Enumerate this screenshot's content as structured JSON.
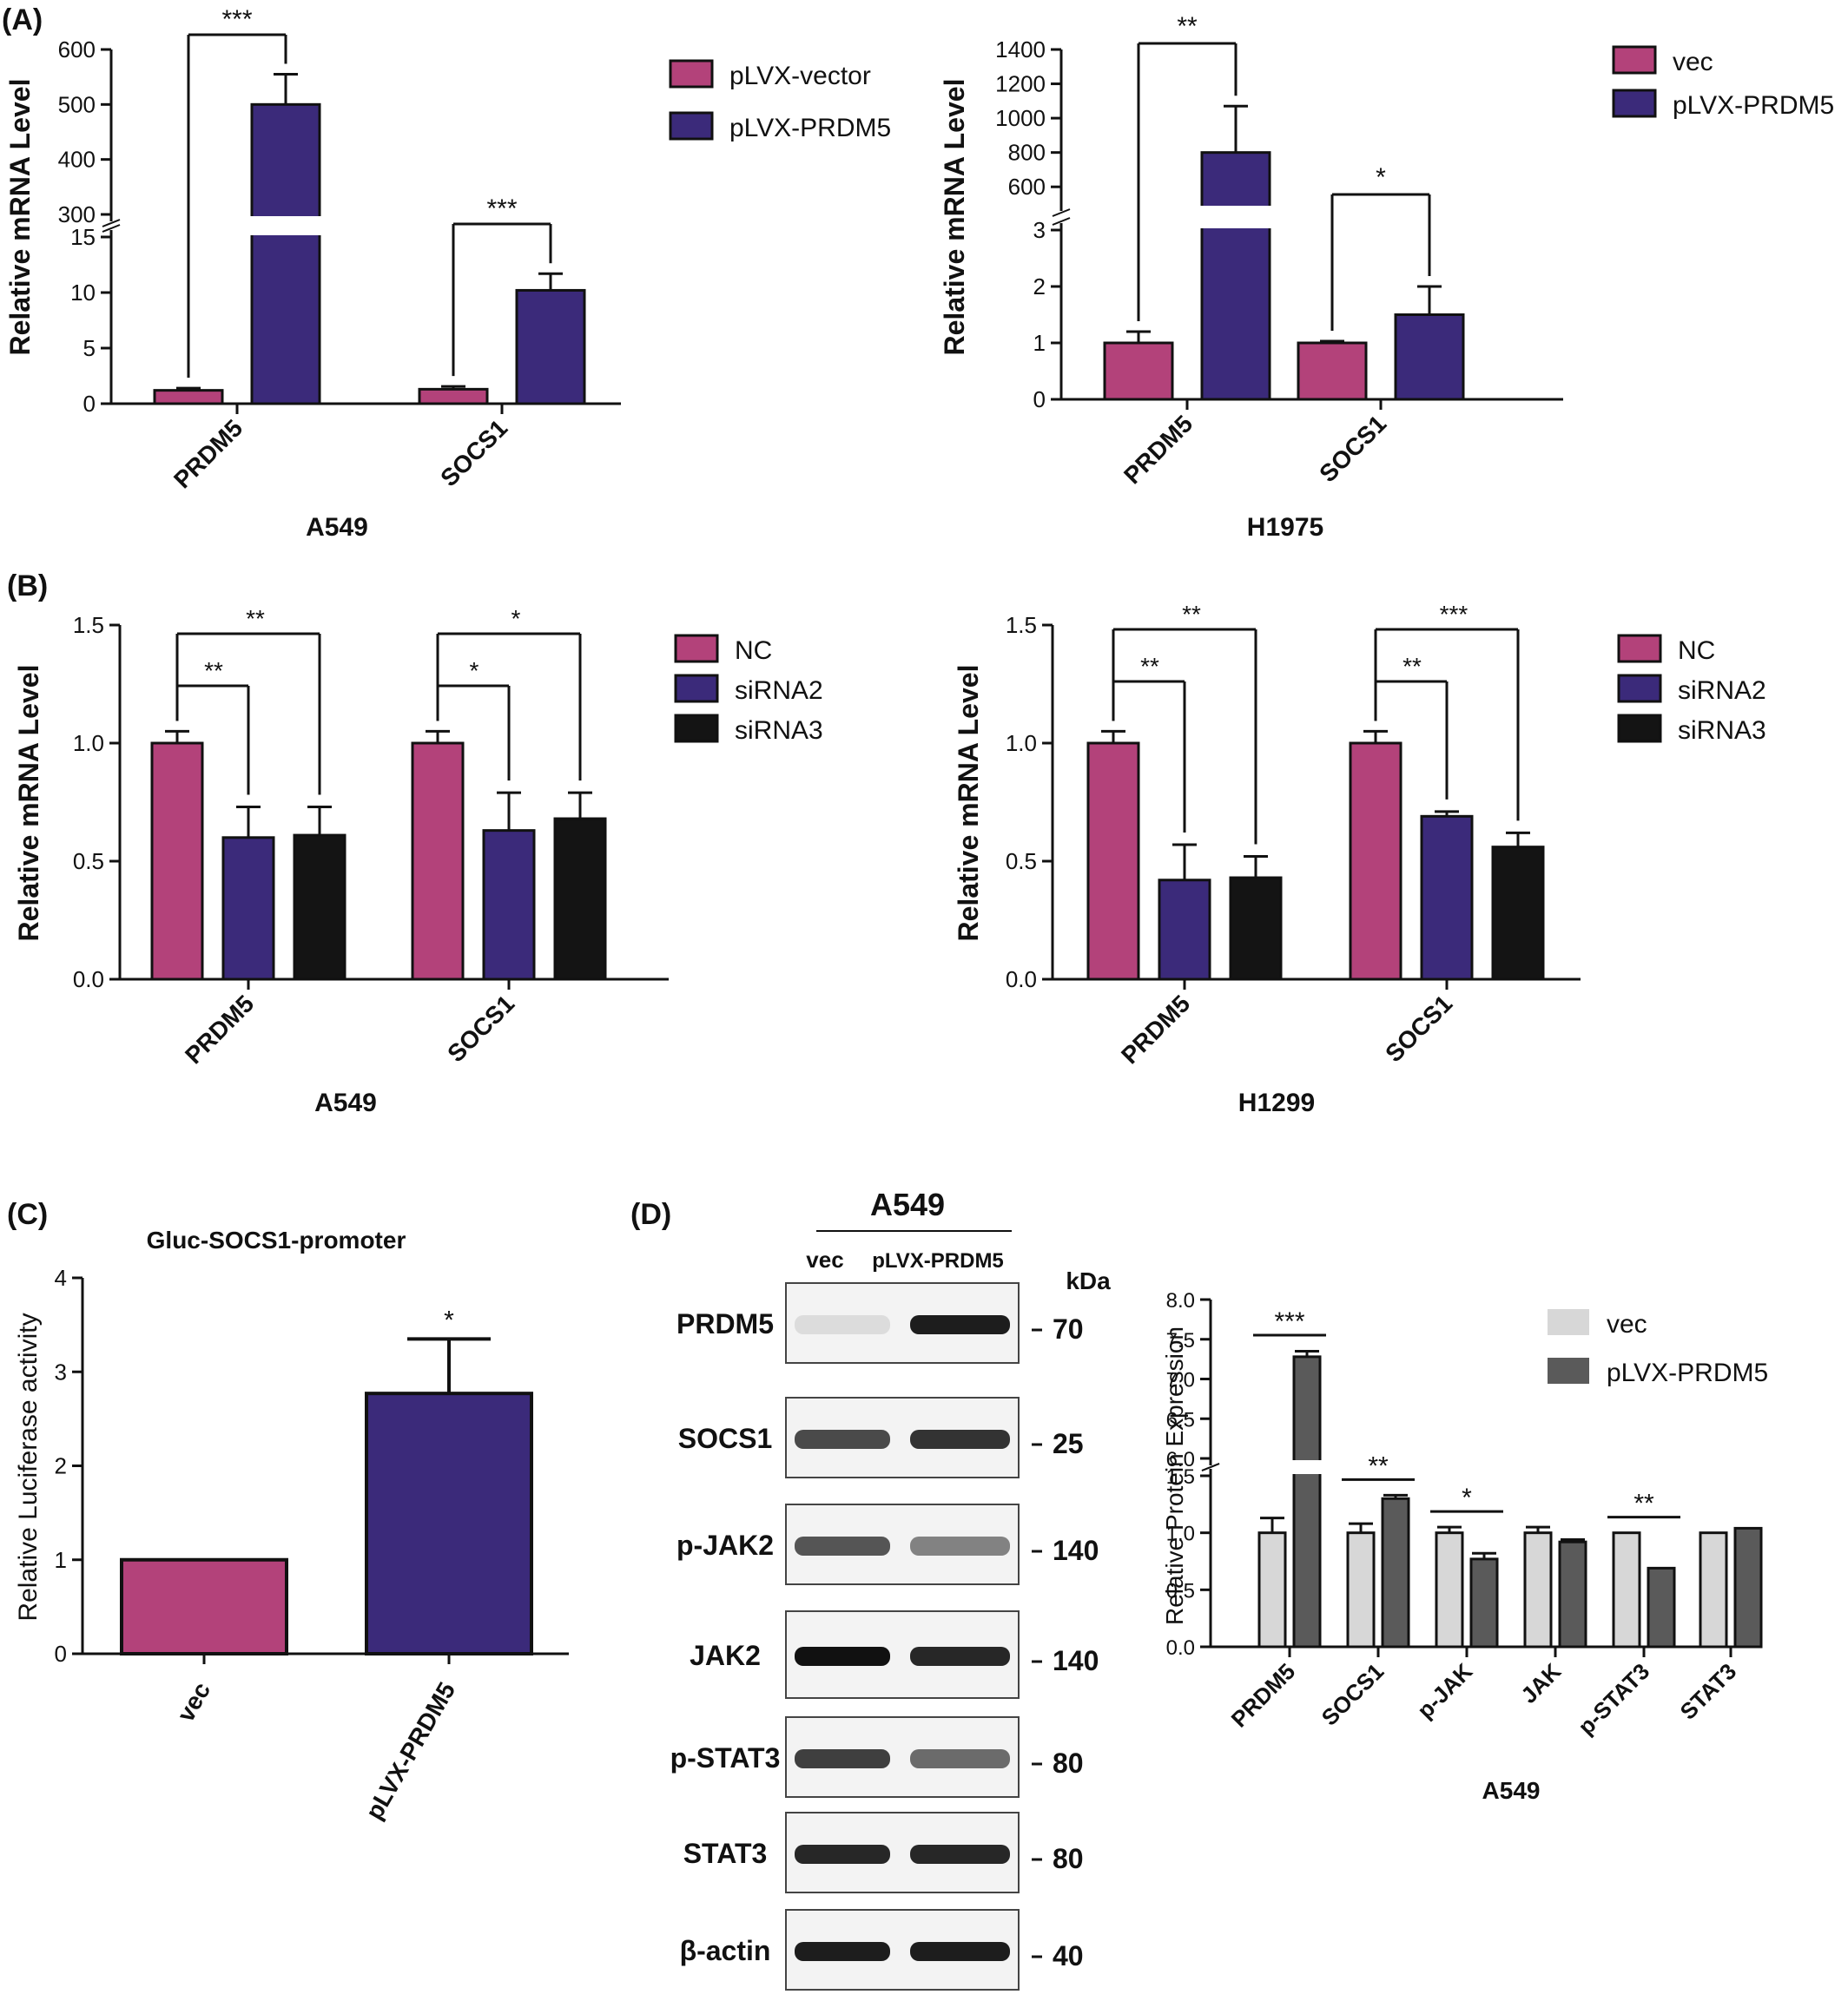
{
  "panel_labels": {
    "a": "(A)",
    "b": "(B)",
    "c": "(C)",
    "d": "(D)"
  },
  "colors": {
    "pink": "#b3427a",
    "purple": "#3b2a7a",
    "black": "#141414",
    "lightgray": "#d7d7d7",
    "darkgray": "#5a5a5a"
  },
  "chart_data": [
    {
      "id": "A549_A",
      "type": "bar",
      "title": "",
      "xlabel": "A549",
      "ylabel": "Relative mRNA Level",
      "categories": [
        "PRDM5",
        "SOCS1"
      ],
      "series": [
        {
          "name": "pLVX-vector",
          "values": [
            1.2,
            1.3
          ],
          "errors": [
            0.2,
            0.25
          ],
          "color": "#b3427a"
        },
        {
          "name": "pLVX-PRDM5",
          "values": [
            500,
            10.2
          ],
          "errors": [
            55,
            1.5
          ],
          "color": "#3b2a7a"
        }
      ],
      "axis_break": {
        "lower": [
          0,
          15
        ],
        "upper": [
          300,
          600
        ]
      },
      "lower_ticks": [
        0,
        5,
        10,
        15
      ],
      "upper_ticks": [
        300,
        400,
        500,
        600
      ],
      "significance": [
        {
          "text": "***",
          "category": 0
        },
        {
          "text": "***",
          "category": 1
        }
      ],
      "legend": "right"
    },
    {
      "id": "H1975_A",
      "type": "bar",
      "title": "",
      "xlabel": "H1975",
      "ylabel": "Relative mRNA Level",
      "categories": [
        "PRDM5",
        "SOCS1"
      ],
      "series": [
        {
          "name": "vec",
          "values": [
            1.0,
            1.0
          ],
          "errors": [
            0.2,
            0.03
          ],
          "color": "#b3427a"
        },
        {
          "name": "pLVX-PRDM5",
          "values": [
            800,
            1.5
          ],
          "errors": [
            270,
            0.5
          ],
          "color": "#3b2a7a"
        }
      ],
      "axis_break": {
        "lower": [
          0,
          3
        ],
        "upper": [
          500,
          1400
        ]
      },
      "lower_ticks": [
        0,
        1,
        2,
        3
      ],
      "upper_ticks": [
        600,
        800,
        1000,
        1200,
        1400
      ],
      "significance": [
        {
          "text": "**",
          "category": 0
        },
        {
          "text": "*",
          "category": 1
        }
      ],
      "legend": "right"
    },
    {
      "id": "A549_B",
      "type": "bar",
      "title": "",
      "xlabel": "A549",
      "ylabel": "Relative mRNA Level",
      "categories": [
        "PRDM5",
        "SOCS1"
      ],
      "series": [
        {
          "name": "NC",
          "values": [
            1.0,
            1.0
          ],
          "errors": [
            0.05,
            0.05
          ],
          "color": "#b3427a"
        },
        {
          "name": "siRNA2",
          "values": [
            0.6,
            0.63
          ],
          "errors": [
            0.13,
            0.16
          ],
          "color": "#3b2a7a"
        },
        {
          "name": "siRNA3",
          "values": [
            0.61,
            0.68
          ],
          "errors": [
            0.12,
            0.11
          ],
          "color": "#141414"
        }
      ],
      "ylim": [
        0,
        1.5
      ],
      "ticks": [
        "0.0",
        "0.5",
        "1.0",
        "1.5"
      ],
      "significance": [
        {
          "category": 0,
          "to": 1,
          "text": "**"
        },
        {
          "category": 0,
          "to": 2,
          "text": "**"
        },
        {
          "category": 1,
          "to": 1,
          "text": "*"
        },
        {
          "category": 1,
          "to": 2,
          "text": "*"
        }
      ],
      "legend": "right"
    },
    {
      "id": "H1299_B",
      "type": "bar",
      "title": "",
      "xlabel": "H1299",
      "ylabel": "Relative mRNA Level",
      "categories": [
        "PRDM5",
        "SOCS1"
      ],
      "series": [
        {
          "name": "NC",
          "values": [
            1.0,
            1.0
          ],
          "errors": [
            0.05,
            0.05
          ],
          "color": "#b3427a"
        },
        {
          "name": "siRNA2",
          "values": [
            0.42,
            0.69
          ],
          "errors": [
            0.15,
            0.02
          ],
          "color": "#3b2a7a"
        },
        {
          "name": "siRNA3",
          "values": [
            0.43,
            0.56
          ],
          "errors": [
            0.09,
            0.06
          ],
          "color": "#141414"
        }
      ],
      "ylim": [
        0,
        1.5
      ],
      "ticks": [
        "0.0",
        "0.5",
        "1.0",
        "1.5"
      ],
      "significance": [
        {
          "category": 0,
          "to": 1,
          "text": "**"
        },
        {
          "category": 0,
          "to": 2,
          "text": "**"
        },
        {
          "category": 1,
          "to": 1,
          "text": "**"
        },
        {
          "category": 1,
          "to": 2,
          "text": "***"
        }
      ],
      "legend": "right"
    },
    {
      "id": "luc_C",
      "type": "bar",
      "title": "Gluc-SOCS1-promoter",
      "xlabel": "",
      "ylabel": "Relative Luciferase activity",
      "categories": [
        "vec",
        "pLVX-PRDM5"
      ],
      "values": [
        1.0,
        2.77
      ],
      "errors": [
        0,
        0.58
      ],
      "colors": [
        "#b3427a",
        "#3b2a7a"
      ],
      "ylim": [
        0,
        4
      ],
      "ticks": [
        0,
        1,
        2,
        3,
        4
      ],
      "significance": [
        {
          "category": 1,
          "text": "*"
        }
      ]
    },
    {
      "id": "protein_D",
      "type": "bar",
      "title": "",
      "xlabel": "A549",
      "ylabel": "Relative Protein Expression",
      "categories": [
        "PRDM5",
        "SOCS1",
        "p-JAK",
        "JAK",
        "p-STAT3",
        "STAT3"
      ],
      "series": [
        {
          "name": "vec",
          "values": [
            1.0,
            1.0,
            1.0,
            1.0,
            1.0,
            1.0
          ],
          "errors": [
            0.13,
            0.08,
            0.05,
            0.05,
            0.0,
            0.0
          ],
          "color": "#d7d7d7"
        },
        {
          "name": "pLVX-PRDM5",
          "values": [
            7.28,
            1.3,
            0.77,
            0.92,
            0.69,
            1.04
          ],
          "errors": [
            0.07,
            0.03,
            0.05,
            0.02,
            0.0,
            0.0
          ],
          "color": "#5a5a5a"
        }
      ],
      "axis_break": {
        "lower": [
          0,
          1.5
        ],
        "upper": [
          6.0,
          8.0
        ]
      },
      "lower_ticks": [
        "0.0",
        "0.5",
        "1.0",
        "1.5"
      ],
      "upper_ticks": [
        "6.0",
        "6.5",
        "7.0",
        "7.5",
        "8.0"
      ],
      "significance": [
        {
          "category": 0,
          "text": "***"
        },
        {
          "category": 1,
          "text": "**"
        },
        {
          "category": 2,
          "text": "*"
        },
        {
          "category": 4,
          "text": "**"
        }
      ],
      "legend": "top-right"
    }
  ],
  "blot": {
    "cell_line": "A549",
    "lanes": [
      "vec",
      "pLVX-PRDM5"
    ],
    "kda_label": "kDa",
    "rows": [
      {
        "protein": "PRDM5",
        "kda": "70",
        "intensity": [
          0.1,
          0.95
        ]
      },
      {
        "protein": "SOCS1",
        "kda": "25",
        "intensity": [
          0.75,
          0.85
        ]
      },
      {
        "protein": "p-JAK2",
        "kda": "140",
        "intensity": [
          0.7,
          0.5
        ]
      },
      {
        "protein": "JAK2",
        "kda": "140",
        "intensity": [
          1.0,
          0.9
        ]
      },
      {
        "protein": "p-STAT3",
        "kda": "80",
        "intensity": [
          0.8,
          0.6
        ]
      },
      {
        "protein": "STAT3",
        "kda": "80",
        "intensity": [
          0.9,
          0.9
        ]
      },
      {
        "protein": "β-actin",
        "kda": "40",
        "intensity": [
          0.95,
          0.95
        ]
      }
    ]
  }
}
